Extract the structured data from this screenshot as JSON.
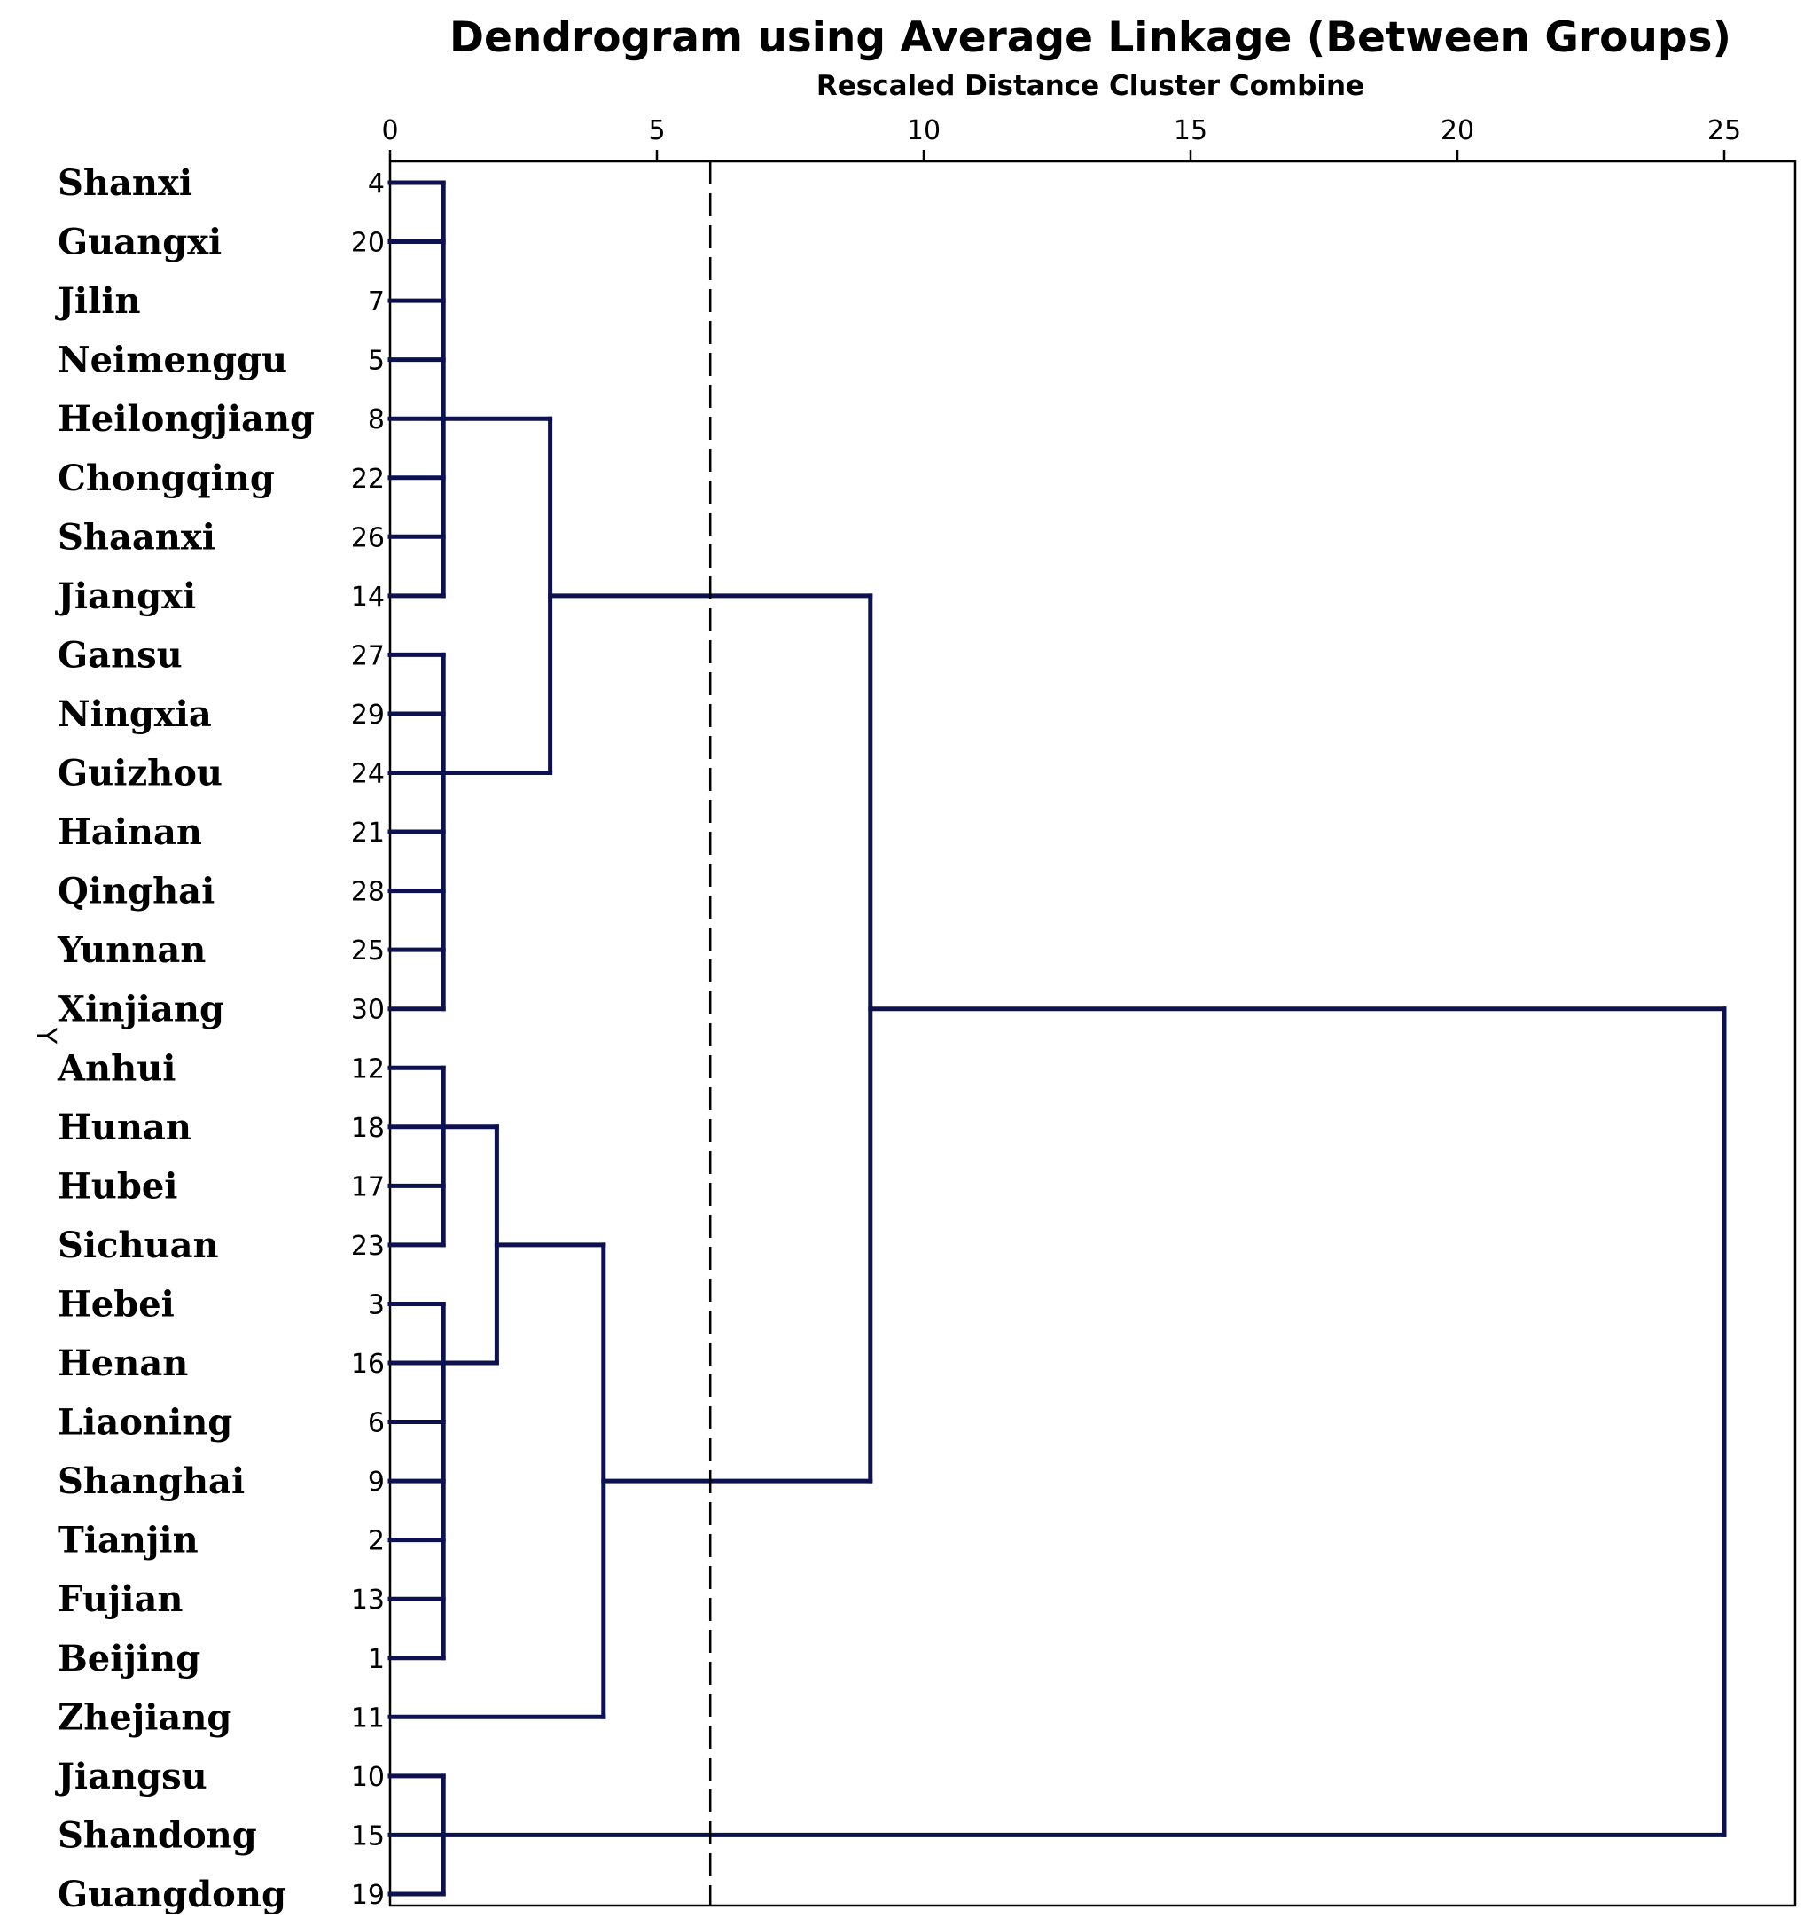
{
  "chart_data": {
    "type": "dendrogram",
    "title": "Dendrogram using Average Linkage (Between Groups)",
    "xlabel": "Rescaled Distance Cluster Combine",
    "ylabel": "Y",
    "xlim": [
      0,
      25
    ],
    "x_ticks": [
      0,
      5,
      10,
      15,
      20,
      25
    ],
    "cut_distance": 6,
    "leaves": [
      {
        "name": "Shanxi",
        "id": "4"
      },
      {
        "name": "Guangxi",
        "id": "20"
      },
      {
        "name": "Jilin",
        "id": "7"
      },
      {
        "name": "Neimenggu",
        "id": "5"
      },
      {
        "name": "Heilongjiang",
        "id": "8"
      },
      {
        "name": "Chongqing",
        "id": "22"
      },
      {
        "name": "Shaanxi",
        "id": "26"
      },
      {
        "name": "Jiangxi",
        "id": "14"
      },
      {
        "name": "Gansu",
        "id": "27"
      },
      {
        "name": "Ningxia",
        "id": "29"
      },
      {
        "name": "Guizhou",
        "id": "24"
      },
      {
        "name": "Hainan",
        "id": "21"
      },
      {
        "name": "Qinghai",
        "id": "28"
      },
      {
        "name": "Yunnan",
        "id": "25"
      },
      {
        "name": "Xinjiang",
        "id": "30"
      },
      {
        "name": "Anhui",
        "id": "12"
      },
      {
        "name": "Hunan",
        "id": "18"
      },
      {
        "name": "Hubei",
        "id": "17"
      },
      {
        "name": "Sichuan",
        "id": "23"
      },
      {
        "name": "Hebei",
        "id": "3"
      },
      {
        "name": "Henan",
        "id": "16"
      },
      {
        "name": "Liaoning",
        "id": "6"
      },
      {
        "name": "Shanghai",
        "id": "9"
      },
      {
        "name": "Tianjin",
        "id": "2"
      },
      {
        "name": "Fujian",
        "id": "13"
      },
      {
        "name": "Beijing",
        "id": "1"
      },
      {
        "name": "Zhejiang",
        "id": "11"
      },
      {
        "name": "Jiangsu",
        "id": "10"
      },
      {
        "name": "Shandong",
        "id": "15"
      },
      {
        "name": "Guangdong",
        "id": "19"
      }
    ],
    "merges": [
      {
        "name": "cluster-a",
        "children": [
          0,
          1,
          2,
          3,
          4,
          5,
          6,
          7
        ],
        "distance": 1,
        "join_leaf": 4
      },
      {
        "name": "cluster-b",
        "children": [
          8,
          9,
          10,
          11,
          12,
          13,
          14
        ],
        "distance": 1,
        "join_leaf": 10
      },
      {
        "name": "cluster-ab",
        "children": [
          "cluster-a",
          "cluster-b"
        ],
        "distance": 3,
        "join_leaf": 7
      },
      {
        "name": "cluster-c",
        "children": [
          15,
          16,
          17,
          18
        ],
        "distance": 1,
        "join_leaf": 16
      },
      {
        "name": "cluster-d",
        "children": [
          19,
          20,
          21,
          22,
          23,
          24,
          25
        ],
        "distance": 1,
        "join_leaf": 20
      },
      {
        "name": "cluster-cd",
        "children": [
          "cluster-c",
          "cluster-d"
        ],
        "distance": 2,
        "join_leaf": 18
      },
      {
        "name": "cluster-cde",
        "children": [
          "cluster-cd",
          26
        ],
        "distance": 4,
        "join_leaf": 22
      },
      {
        "name": "cluster-abcde",
        "children": [
          "cluster-ab",
          "cluster-cde"
        ],
        "distance": 9,
        "join_leaf": 14
      },
      {
        "name": "cluster-f",
        "children": [
          27,
          28,
          29
        ],
        "distance": 1,
        "join_leaf": 28
      },
      {
        "name": "cluster-root",
        "children": [
          "cluster-abcde",
          "cluster-f"
        ],
        "distance": 25,
        "join_leaf": 14
      }
    ]
  }
}
